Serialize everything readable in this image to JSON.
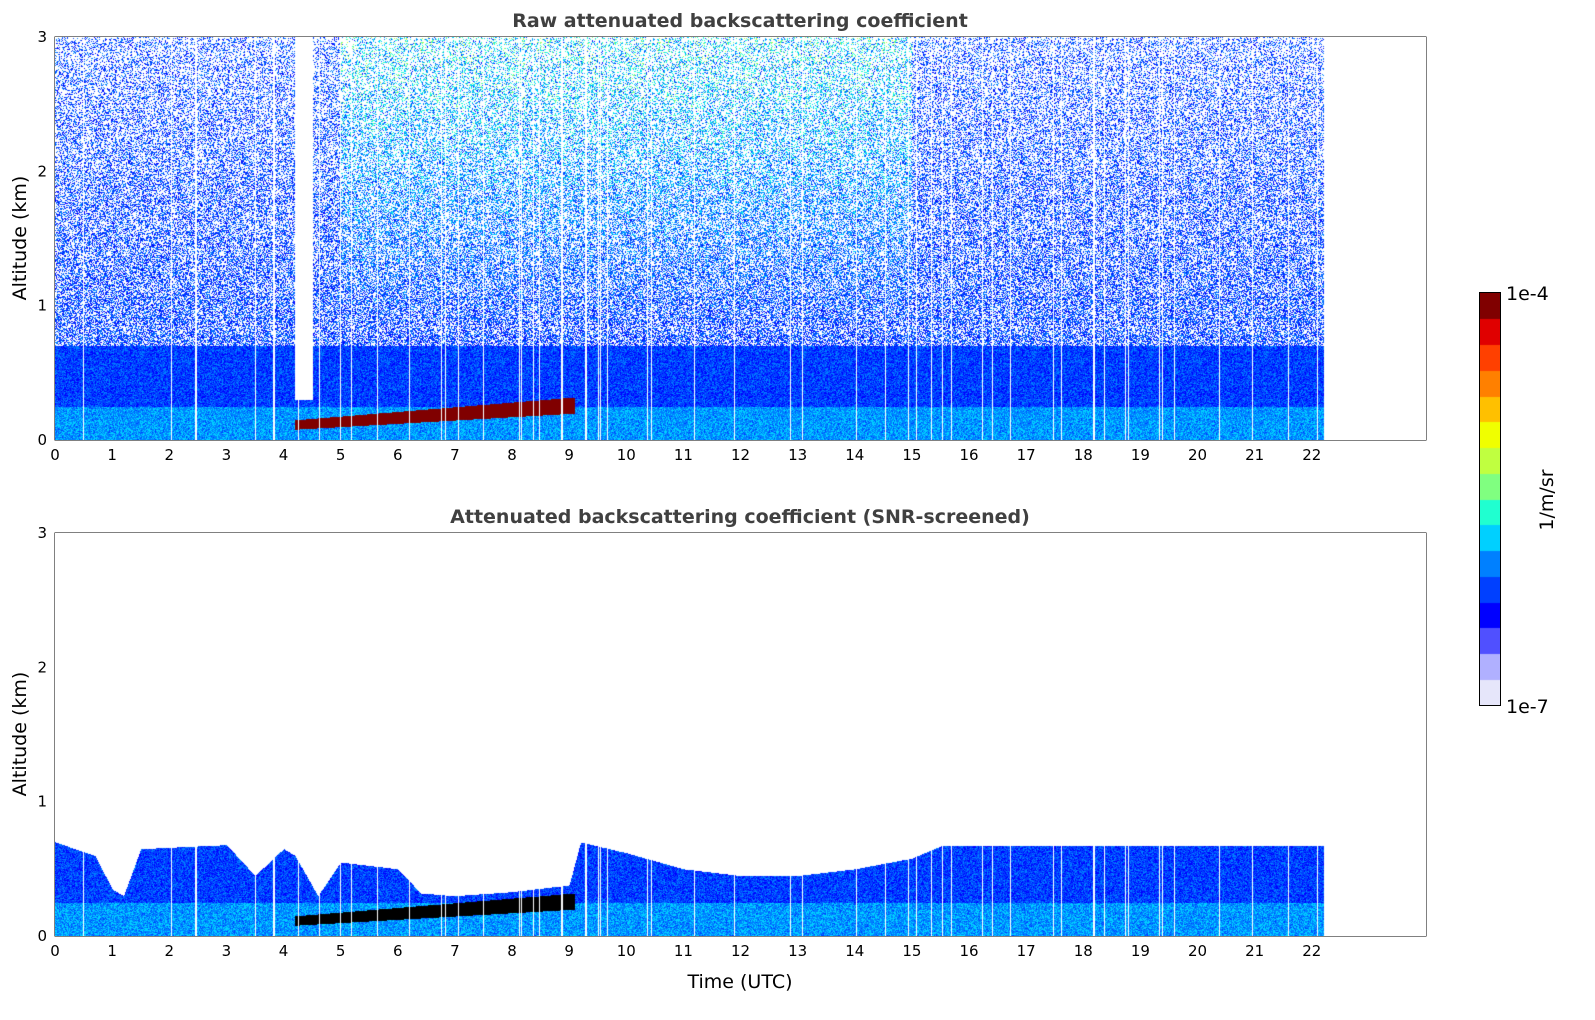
{
  "chart_data": [
    {
      "type": "heatmap",
      "title": "Raw attenuated backscattering coefficient",
      "xlabel": "",
      "ylabel": "Altitude (km)",
      "xlim": [
        0,
        24
      ],
      "ylim": [
        0,
        3
      ],
      "xticks": [
        "0",
        "1",
        "2",
        "3",
        "4",
        "5",
        "6",
        "7",
        "8",
        "9",
        "10",
        "11",
        "12",
        "13",
        "14",
        "15",
        "16",
        "17",
        "18",
        "19",
        "20",
        "21",
        "22"
      ],
      "yticks": [
        "0",
        "1",
        "2",
        "3"
      ],
      "screened": false
    },
    {
      "type": "heatmap",
      "title": "Attenuated backscattering coefficient (SNR-screened)",
      "xlabel": "Time (UTC)",
      "ylabel": "Altitude (km)",
      "xlim": [
        0,
        24
      ],
      "ylim": [
        0,
        3
      ],
      "xticks": [
        "0",
        "1",
        "2",
        "3",
        "4",
        "5",
        "6",
        "7",
        "8",
        "9",
        "10",
        "11",
        "12",
        "13",
        "14",
        "15",
        "16",
        "17",
        "18",
        "19",
        "20",
        "21",
        "22"
      ],
      "yticks": [
        "0",
        "1",
        "2",
        "3"
      ],
      "screened": true
    }
  ],
  "data_features": {
    "data_end_hour": 22.2,
    "boundary_layer_top_km": 0.7,
    "raw_gap_hours": [
      4.2,
      4.5
    ],
    "elevated_layer": {
      "start_hour": 4.2,
      "end_hour": 9.1,
      "base_km_start": 0.08,
      "base_km_end": 0.2,
      "top_km_start": 0.15,
      "top_km_end": 0.32
    },
    "screened_top_profile": {
      "hours": [
        0,
        0.7,
        1.0,
        1.2,
        1.5,
        3.0,
        3.5,
        4.0,
        4.2,
        4.6,
        5.0,
        6.0,
        6.4,
        7.0,
        8.0,
        9.0,
        9.2,
        10.0,
        11.0,
        12.0,
        13.0,
        14.0,
        15.0,
        15.5,
        22.2
      ],
      "km": [
        0.7,
        0.6,
        0.35,
        0.3,
        0.65,
        0.68,
        0.45,
        0.65,
        0.6,
        0.3,
        0.55,
        0.5,
        0.32,
        0.3,
        0.33,
        0.38,
        0.7,
        0.62,
        0.5,
        0.45,
        0.45,
        0.5,
        0.58,
        0.67,
        0.67
      ]
    }
  },
  "colorbar": {
    "label": "1/m/sr",
    "max_label": "1e-4",
    "min_label": "1e-7",
    "min": 1e-07,
    "max": 0.0001,
    "scale": "log",
    "colors": [
      "#e6e6fa",
      "#b0b0ff",
      "#5050ff",
      "#0000ff",
      "#0040ff",
      "#0080ff",
      "#00d0ff",
      "#20ffd0",
      "#80ff80",
      "#c0ff40",
      "#f0ff00",
      "#ffc000",
      "#ff8000",
      "#ff4000",
      "#e00000",
      "#800000"
    ]
  }
}
